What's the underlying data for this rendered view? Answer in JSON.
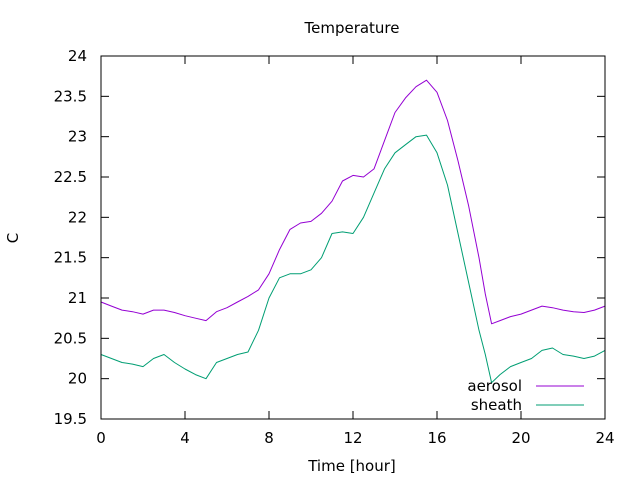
{
  "chart_data": {
    "type": "line",
    "title": "Temperature",
    "xlabel": "Time [hour]",
    "ylabel": "C",
    "xlim": [
      0,
      24
    ],
    "ylim": [
      19.5,
      24
    ],
    "x_ticks": [
      0,
      4,
      8,
      12,
      16,
      20,
      24
    ],
    "y_ticks": [
      19.5,
      20,
      20.5,
      21,
      21.5,
      22,
      22.5,
      23,
      23.5,
      24
    ],
    "grid": false,
    "legend_position": "bottom-right",
    "series": [
      {
        "name": "aerosol",
        "color": "#9400d3",
        "x": [
          0,
          0.5,
          1,
          1.5,
          2,
          2.5,
          3,
          3.5,
          4,
          4.5,
          5,
          5.5,
          6,
          6.5,
          7,
          7.5,
          8,
          8.5,
          9,
          9.5,
          10,
          10.5,
          11,
          11.5,
          12,
          12.5,
          13,
          13.5,
          14,
          14.5,
          15,
          15.5,
          16,
          16.5,
          17,
          17.5,
          18,
          18.3,
          18.6,
          19,
          19.5,
          20,
          20.5,
          21,
          21.5,
          22,
          22.5,
          23,
          23.5,
          24
        ],
        "y": [
          20.95,
          20.9,
          20.85,
          20.83,
          20.8,
          20.85,
          20.85,
          20.82,
          20.78,
          20.75,
          20.72,
          20.83,
          20.88,
          20.95,
          21.02,
          21.1,
          21.3,
          21.6,
          21.85,
          21.93,
          21.95,
          22.05,
          22.2,
          22.45,
          22.52,
          22.5,
          22.6,
          22.95,
          23.3,
          23.48,
          23.62,
          23.7,
          23.55,
          23.2,
          22.7,
          22.15,
          21.5,
          21.05,
          20.68,
          20.72,
          20.77,
          20.8,
          20.85,
          20.9,
          20.88,
          20.85,
          20.83,
          20.82,
          20.85,
          20.9
        ]
      },
      {
        "name": "sheath",
        "color": "#009e73",
        "x": [
          0,
          0.5,
          1,
          1.5,
          2,
          2.5,
          3,
          3.5,
          4,
          4.5,
          5,
          5.5,
          6,
          6.5,
          7,
          7.5,
          8,
          8.5,
          9,
          9.5,
          10,
          10.5,
          11,
          11.5,
          12,
          12.5,
          13,
          13.5,
          14,
          14.5,
          15,
          15.5,
          16,
          16.5,
          17,
          17.5,
          18,
          18.3,
          18.6,
          19,
          19.5,
          20,
          20.5,
          21,
          21.5,
          22,
          22.5,
          23,
          23.5,
          24
        ],
        "y": [
          20.3,
          20.25,
          20.2,
          20.18,
          20.15,
          20.25,
          20.3,
          20.2,
          20.12,
          20.05,
          20.0,
          20.2,
          20.25,
          20.3,
          20.33,
          20.6,
          21.0,
          21.25,
          21.3,
          21.3,
          21.35,
          21.5,
          21.8,
          21.82,
          21.8,
          22.0,
          22.3,
          22.6,
          22.8,
          22.9,
          23.0,
          23.02,
          22.8,
          22.4,
          21.8,
          21.2,
          20.6,
          20.3,
          19.95,
          20.05,
          20.15,
          20.2,
          20.25,
          20.35,
          20.38,
          20.3,
          20.28,
          20.25,
          20.28,
          20.35
        ]
      }
    ]
  }
}
